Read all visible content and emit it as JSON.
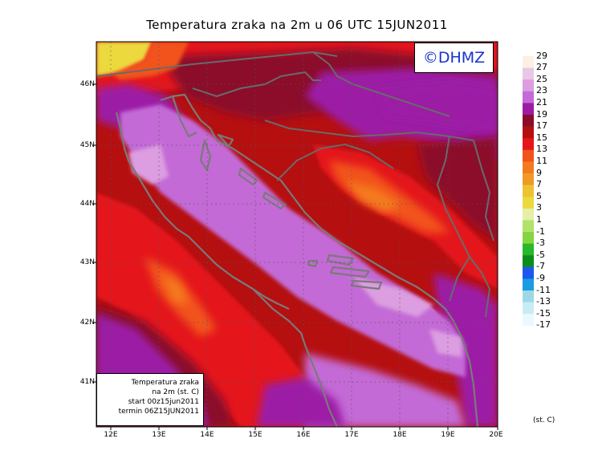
{
  "title": "Temperatura zraka na 2m u 06 UTC 15JUN2011",
  "logo": "©DHMZ",
  "info": {
    "line1": "Temperatura zraka",
    "line2": "na 2m (st. C)",
    "line3": "start 00z15jun2011",
    "line4": "termin 06Z15JUN2011"
  },
  "lat_labels": [
    "46N",
    "45N",
    "44N",
    "43N",
    "42N",
    "41N"
  ],
  "lon_labels": [
    "12E",
    "13E",
    "14E",
    "15E",
    "16E",
    "17E",
    "18E",
    "19E",
    "20E"
  ],
  "colorbar": {
    "labels": [
      "29",
      "27",
      "25",
      "23",
      "21",
      "19",
      "17",
      "15",
      "13",
      "11",
      "9",
      "7",
      "5",
      "3",
      "1",
      "-1",
      "-3",
      "-5",
      "-7",
      "-9",
      "-11",
      "-13",
      "-15",
      "-17"
    ],
    "colors": [
      "#fdf0e3",
      "#e8c8e6",
      "#dc9ee0",
      "#c36ad6",
      "#9c1ca6",
      "#8b0d2c",
      "#b50f10",
      "#e4161b",
      "#f2521c",
      "#f47a1e",
      "#f09a26",
      "#eec234",
      "#ecd93e",
      "#e3f0a8",
      "#b2e26a",
      "#84d640",
      "#28b828",
      "#0d8c1e",
      "#1c58f0",
      "#1a9ce2",
      "#9ed8e6",
      "#c8ecf4",
      "#eafafc"
    ],
    "units": "(st. C)"
  },
  "map_colors": {
    "sea_light": "#dc9ee0",
    "sea_mid": "#c36ad6",
    "land_dark": "#9c1ca6",
    "land_darkred": "#8b0d2c",
    "land_red": "#b50f10",
    "land_bright": "#e4161b",
    "land_orange": "#f2521c",
    "land_orange2": "#f47a1e",
    "land_yellow": "#ecd93e",
    "coast": "#7a7a7a"
  }
}
